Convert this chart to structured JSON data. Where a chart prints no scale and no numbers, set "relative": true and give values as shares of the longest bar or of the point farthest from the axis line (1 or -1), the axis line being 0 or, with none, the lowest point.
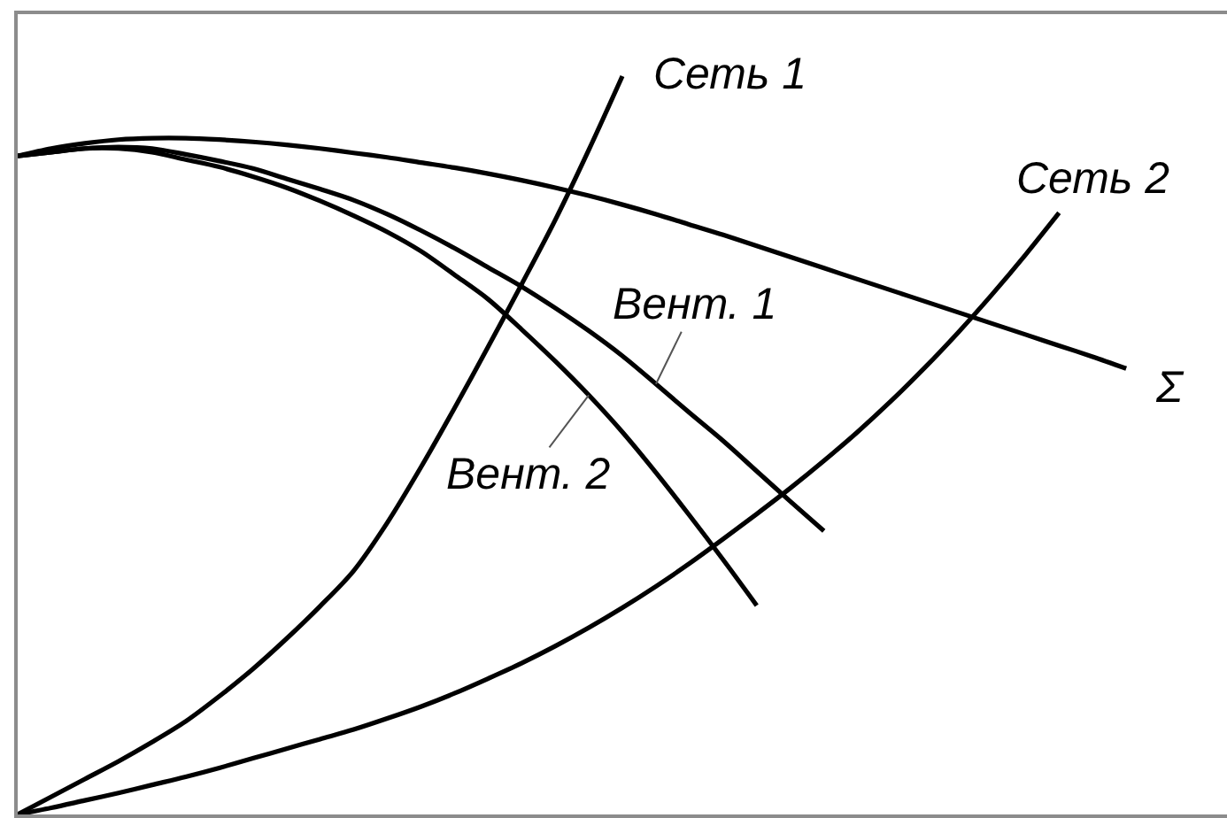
{
  "chart_data": {
    "type": "line",
    "relative": true,
    "categories": [
      null,
      null,
      null,
      null,
      null,
      null,
      null,
      null,
      null,
      null,
      null,
      null,
      null,
      null,
      null,
      null,
      null,
      null,
      null,
      null,
      null,
      null,
      null,
      null,
      null,
      null,
      null,
      null,
      null,
      null,
      null,
      null,
      null,
      null,
      null,
      null,
      null
    ],
    "series": [
      {
        "name": "Сеть 1",
        "color": "#000000",
        "values": [
          0,
          0.024,
          0.048,
          0.072,
          0.098,
          0.126,
          0.16,
          0.197,
          0.238,
          0.282,
          0.33,
          0.395,
          0.47,
          0.55,
          0.633,
          0.718,
          0.805,
          0.9,
          1.0,
          null,
          null,
          null,
          null,
          null,
          null,
          null,
          null,
          null,
          null,
          null,
          null,
          null,
          null,
          null,
          null,
          null,
          null
        ]
      },
      {
        "name": "Сеть 2",
        "color": "#000000",
        "values": [
          0,
          0.009,
          0.019,
          0.029,
          0.04,
          0.051,
          0.063,
          0.076,
          0.089,
          0.102,
          0.115,
          0.13,
          0.146,
          0.164,
          0.184,
          0.205,
          0.228,
          0.253,
          0.28,
          0.309,
          0.34,
          0.373,
          0.407,
          0.442,
          0.479,
          0.518,
          0.56,
          0.605,
          0.653,
          0.704,
          0.758,
          0.815,
          null,
          null,
          null,
          null,
          null
        ]
      },
      {
        "name": "Вент. 1",
        "color": "#000000",
        "values": [
          0.892,
          0.897,
          0.902,
          0.904,
          0.902,
          0.894,
          0.885,
          0.875,
          0.861,
          0.847,
          0.832,
          0.813,
          0.791,
          0.767,
          0.741,
          0.715,
          0.686,
          0.655,
          0.621,
          0.583,
          0.544,
          0.506,
          0.465,
          0.424,
          0.384,
          null,
          null,
          null,
          null,
          null,
          null,
          null,
          null,
          null,
          null,
          null,
          null
        ]
      },
      {
        "name": "Вент. 2",
        "color": "#000000",
        "values": [
          0.892,
          0.897,
          0.902,
          0.902,
          0.897,
          0.887,
          0.877,
          0.864,
          0.849,
          0.831,
          0.811,
          0.789,
          0.763,
          0.731,
          0.698,
          0.657,
          0.614,
          0.568,
          0.518,
          0.463,
          0.405,
          0.345,
          0.283,
          null,
          null,
          null,
          null,
          null,
          null,
          null,
          null,
          null,
          null,
          null,
          null,
          null,
          null
        ]
      },
      {
        "name": "Σ",
        "color": "#000000",
        "values": [
          0.892,
          0.902,
          0.909,
          0.914,
          0.916,
          0.916,
          0.914,
          0.911,
          0.907,
          0.902,
          0.896,
          0.89,
          0.883,
          0.876,
          0.868,
          0.859,
          0.849,
          0.838,
          0.826,
          0.813,
          0.799,
          0.785,
          0.77,
          0.755,
          0.74,
          0.725,
          0.71,
          0.695,
          0.68,
          0.665,
          0.65,
          0.635,
          0.62,
          0.604,
          null,
          null,
          null
        ]
      }
    ]
  }
}
